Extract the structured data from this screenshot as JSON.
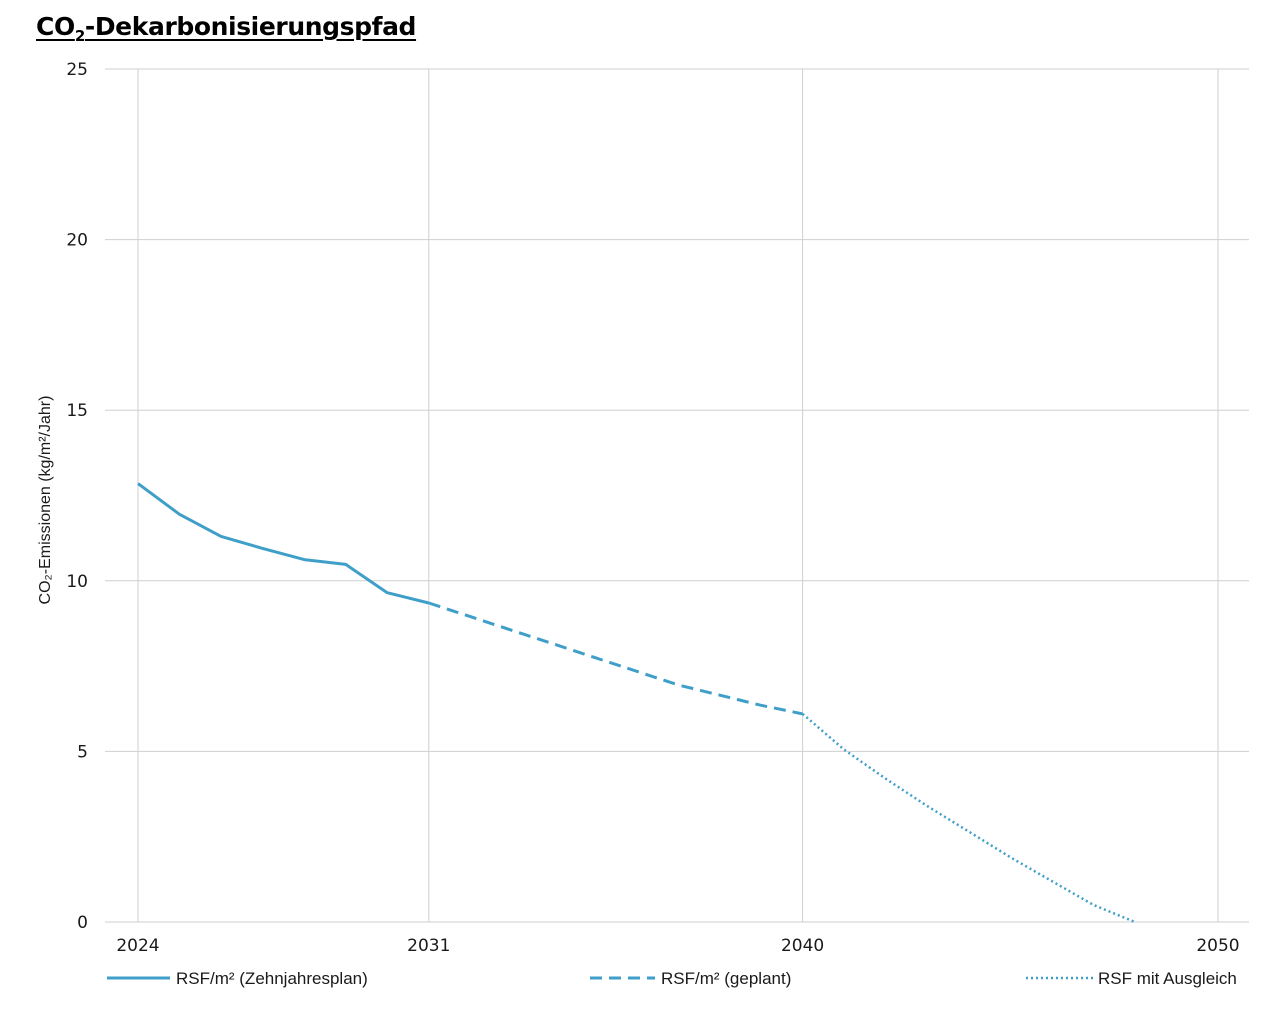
{
  "title": {
    "main": "CO",
    "sub": "2",
    "rest": "-Dekarbonisierungspfad"
  },
  "chart_data": {
    "type": "line",
    "title": "CO2-Dekarbonisierungspfad",
    "ylabel": "CO₂-Emissionen (kg/m²/Jahr)",
    "xlabel": "",
    "x_ticks": [
      2024,
      2031,
      2040,
      2050
    ],
    "y_ticks": [
      0,
      5,
      10,
      15,
      20,
      25
    ],
    "xlim": [
      2024,
      2050
    ],
    "ylim": [
      0,
      25
    ],
    "grid": true,
    "legend_position": "bottom",
    "series": [
      {
        "name": "RSF/m² (Zehnjahresplan)",
        "style": "solid",
        "color": "#3f9fc9",
        "points": [
          [
            2024,
            12.85
          ],
          [
            2025,
            11.95
          ],
          [
            2026,
            11.3
          ],
          [
            2027,
            10.95
          ],
          [
            2028,
            10.62
          ],
          [
            2029,
            10.48
          ],
          [
            2030,
            9.65
          ],
          [
            2031,
            9.35
          ]
        ]
      },
      {
        "name": "RSF/m² (geplant)",
        "style": "dashed",
        "color": "#3f9fc9",
        "points": [
          [
            2031,
            9.35
          ],
          [
            2032,
            8.95
          ],
          [
            2033,
            8.55
          ],
          [
            2034,
            8.15
          ],
          [
            2035,
            7.75
          ],
          [
            2036,
            7.35
          ],
          [
            2037,
            6.95
          ],
          [
            2038,
            6.65
          ],
          [
            2039,
            6.35
          ],
          [
            2040,
            6.1
          ]
        ]
      },
      {
        "name": "RSF mit Ausgleich",
        "style": "dotted",
        "color": "#3f9fc9",
        "points": [
          [
            2040,
            6.1
          ],
          [
            2041,
            5.05
          ],
          [
            2042,
            4.2
          ],
          [
            2043,
            3.4
          ],
          [
            2044,
            2.65
          ],
          [
            2045,
            1.9
          ],
          [
            2046,
            1.2
          ],
          [
            2047,
            0.5
          ],
          [
            2048,
            0.0
          ]
        ]
      }
    ]
  }
}
